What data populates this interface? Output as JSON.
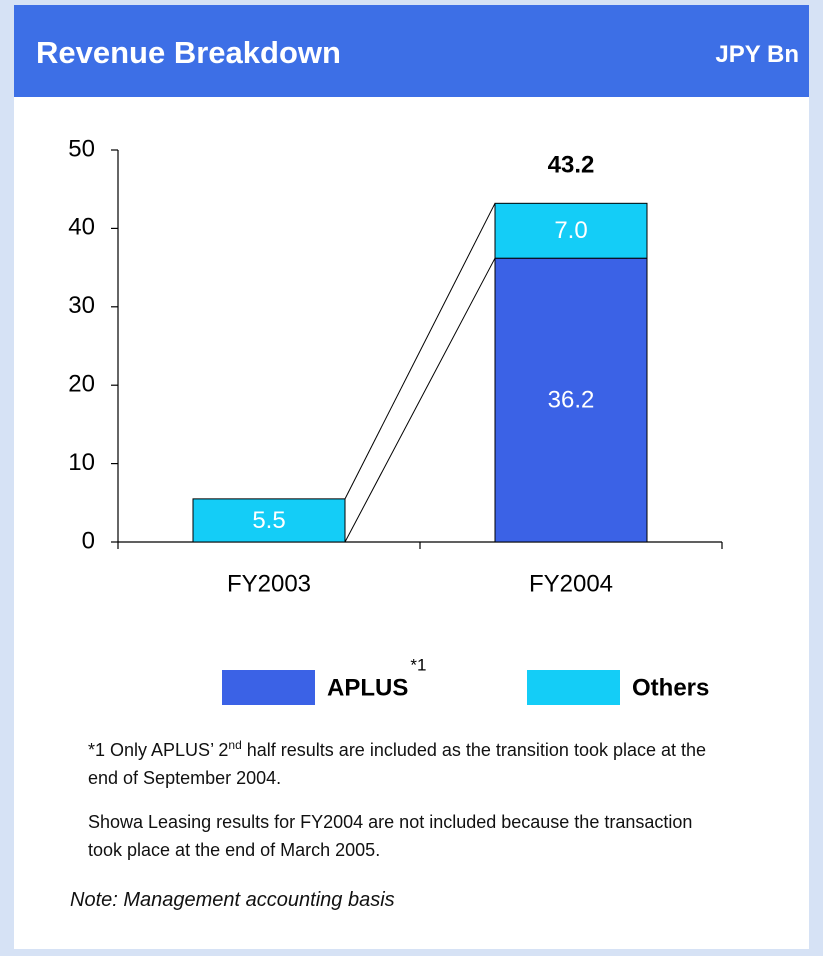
{
  "chart_data": {
    "type": "stacked-bar",
    "title": "Revenue Breakdown",
    "unit": "JPY Bn",
    "categories": [
      "FY2003",
      "FY2004"
    ],
    "series": [
      {
        "name": "APLUS",
        "superscript": "*1",
        "color": "#3b62e6",
        "values": [
          null,
          36.2
        ]
      },
      {
        "name": "Others",
        "color": "#14cdf7",
        "values": [
          5.5,
          7.0
        ],
        "value_labels": [
          "5.5",
          "7.0"
        ]
      }
    ],
    "totals": [
      null,
      43.2
    ],
    "ylim": [
      0,
      50
    ],
    "yticks": [
      0,
      10,
      20,
      30,
      40,
      50
    ],
    "footnotes": [
      {
        "text": "*1 Only APLUS’ 2",
        "sup": "nd",
        "rest": " half results are included as the transition took place at the end of September 2004."
      },
      {
        "text": "Showa Leasing results for FY2004 are not included because the transaction took place at the end of March 2005."
      }
    ],
    "note": "Note:  Management accounting basis"
  }
}
